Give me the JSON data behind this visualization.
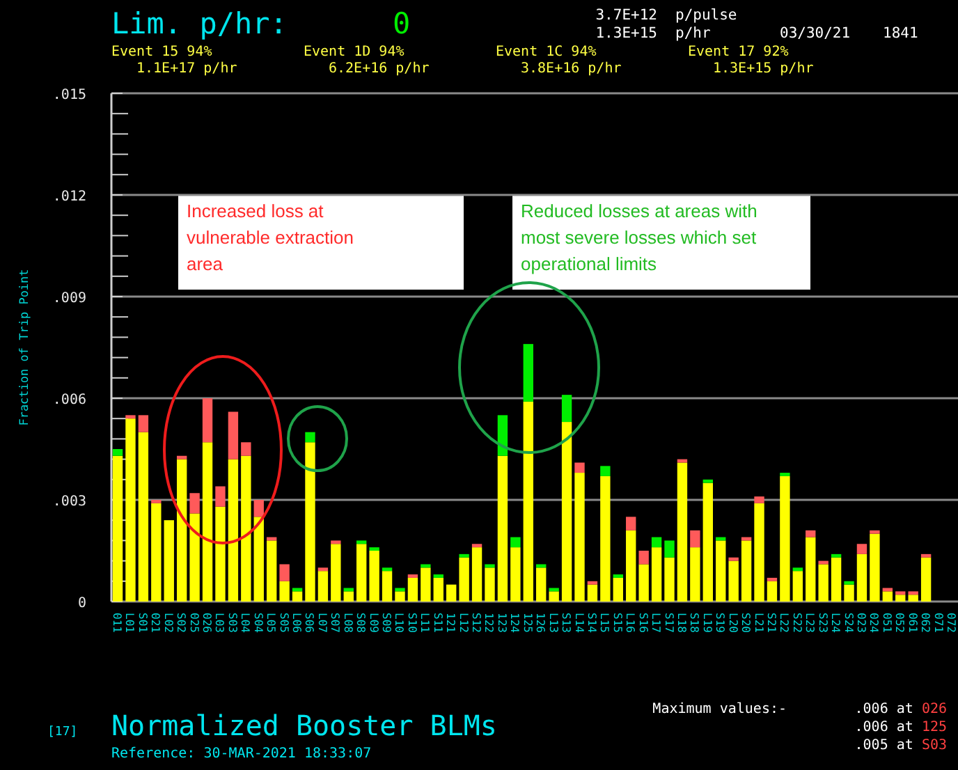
{
  "chart_data": {
    "type": "bar",
    "stacked": true,
    "title": "Normalized Booster BLMs",
    "subtitle": "Reference: 30-MAR-2021 18:33:07",
    "ylabel": "Fraction of Trip Point",
    "categories": [
      "011",
      "L01",
      "S01",
      "021",
      "L02",
      "S02",
      "025",
      "026",
      "L03",
      "S03",
      "L04",
      "S04",
      "L05",
      "S05",
      "L06",
      "S06",
      "L07",
      "S07",
      "L08",
      "S08",
      "L09",
      "S09",
      "L10",
      "S10",
      "L11",
      "S11",
      "121",
      "L12",
      "S12",
      "122",
      "123",
      "124",
      "125",
      "126",
      "L13",
      "S13",
      "L14",
      "S14",
      "L15",
      "S15",
      "L16",
      "S16",
      "L17",
      "S17",
      "L18",
      "S18",
      "L19",
      "S19",
      "L20",
      "S20",
      "L21",
      "S21",
      "L22",
      "S22",
      "L23",
      "S23",
      "L24",
      "S24",
      "023",
      "024",
      "051",
      "052",
      "061",
      "062",
      "071",
      "072"
    ],
    "series": [
      {
        "color": "#ffff00",
        "values": [
          0.0043,
          0.0054,
          0.005,
          0.0029,
          0.0024,
          0.0042,
          0.0026,
          0.0047,
          0.0028,
          0.0042,
          0.0043,
          0.0025,
          0.0018,
          0.0006,
          0.0003,
          0.0047,
          0.0009,
          0.0017,
          0.0003,
          0.0017,
          0.0015,
          0.0009,
          0.0003,
          0.0007,
          0.001,
          0.0007,
          0.0005,
          0.0013,
          0.0016,
          0.001,
          0.0043,
          0.0016,
          0.0059,
          0.001,
          0.0003,
          0.0053,
          0.0038,
          0.0005,
          0.0037,
          0.0007,
          0.0021,
          0.0011,
          0.0016,
          0.0013,
          0.0041,
          0.0016,
          0.0035,
          0.0018,
          0.0012,
          0.0018,
          0.0029,
          0.0006,
          0.0037,
          0.0009,
          0.0019,
          0.0011,
          0.0013,
          0.0005,
          0.0014,
          0.002,
          0.0003,
          0.0002,
          0.0002,
          0.0013,
          null,
          null
        ]
      },
      {
        "color": "#00ee00",
        "values": [
          0.0002,
          null,
          null,
          null,
          null,
          null,
          null,
          null,
          null,
          null,
          null,
          null,
          null,
          null,
          0.0001,
          0.0003,
          null,
          null,
          0.0001,
          0.0001,
          0.0001,
          0.0001,
          0.0001,
          null,
          0.0001,
          0.0001,
          null,
          0.0001,
          null,
          0.0001,
          0.0012,
          0.0003,
          0.0017,
          0.0001,
          0.0001,
          0.0008,
          null,
          null,
          0.0003,
          0.0001,
          null,
          null,
          0.0003,
          0.0005,
          null,
          null,
          0.0001,
          0.0001,
          null,
          null,
          null,
          null,
          0.0001,
          0.0001,
          null,
          null,
          0.0001,
          0.0001,
          null,
          null,
          null,
          null,
          null,
          null,
          null,
          null
        ]
      },
      {
        "color": "#ff5a5a",
        "values": [
          null,
          0.0001,
          0.0005,
          0.0001,
          null,
          0.0001,
          0.0006,
          0.0013,
          0.0006,
          0.0014,
          0.0004,
          0.0005,
          0.0001,
          0.0005,
          null,
          null,
          0.0001,
          0.0001,
          null,
          null,
          null,
          null,
          null,
          0.0001,
          null,
          null,
          null,
          null,
          0.0001,
          null,
          null,
          null,
          null,
          null,
          null,
          null,
          0.0003,
          0.0001,
          null,
          null,
          0.0004,
          0.0004,
          null,
          null,
          0.0001,
          0.0005,
          null,
          null,
          0.0001,
          0.0001,
          0.0002,
          0.0001,
          null,
          null,
          0.0002,
          0.0001,
          null,
          null,
          0.0003,
          0.0001,
          0.0001,
          0.0001,
          0.0001,
          0.0001,
          null,
          null
        ]
      }
    ],
    "ylim": [
      0,
      0.015
    ],
    "yticks": [
      {
        "value": 0,
        "label": "0"
      },
      {
        "value": 0.0006,
        "label": null
      },
      {
        "value": 0.0012,
        "label": null
      },
      {
        "value": 0.0018,
        "label": null
      },
      {
        "value": 0.0024,
        "label": null
      },
      {
        "value": 0.003,
        "label": ".003"
      },
      {
        "value": 0.0036,
        "label": null
      },
      {
        "value": 0.0042,
        "label": null
      },
      {
        "value": 0.0048,
        "label": null
      },
      {
        "value": 0.0054,
        "label": null
      },
      {
        "value": 0.006,
        "label": ".006"
      },
      {
        "value": 0.0066,
        "label": null
      },
      {
        "value": 0.0072,
        "label": null
      },
      {
        "value": 0.0078,
        "label": null
      },
      {
        "value": 0.0084,
        "label": null
      },
      {
        "value": 0.009,
        "label": ".009"
      },
      {
        "value": 0.0096,
        "label": null
      },
      {
        "value": 0.0102,
        "label": null
      },
      {
        "value": 0.0108,
        "label": null
      },
      {
        "value": 0.0114,
        "label": null
      },
      {
        "value": 0.012,
        "label": ".012"
      },
      {
        "value": 0.0126,
        "label": null
      },
      {
        "value": 0.0132,
        "label": null
      },
      {
        "value": 0.0138,
        "label": null
      },
      {
        "value": 0.0144,
        "label": null
      },
      {
        "value": 0.015,
        "label": ".015"
      }
    ],
    "grid": "y",
    "annotations": [
      "Lim. p/hr:",
      "0",
      "3.7E+12",
      "p/pulse",
      "1.3E+15",
      "p/hr",
      "03/30/21",
      "1841",
      "Event 15 94%",
      "1.1E+17 p/hr",
      "Event 1D 94%",
      "6.2E+16 p/hr",
      "Event 1C 94%",
      "3.8E+16 p/hr",
      "Event 17 92%",
      "1.3E+15 p/hr",
      "Increased loss at vulnerable extraction area",
      "Reduced losses at areas with most severe losses which set operational limits",
      "[17]",
      "Maximum values:-",
      ".006 at 026",
      ".006 at 125",
      ".005 at S03"
    ]
  }
}
